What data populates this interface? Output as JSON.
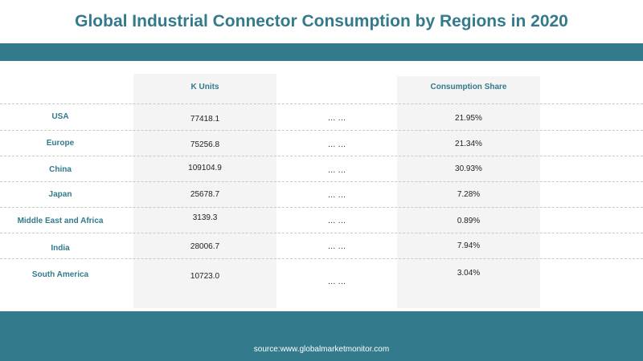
{
  "title": "Global Industrial Connector Consumption by Regions in 2020",
  "headers": {
    "k_units": "K Units",
    "share": "Consumption  Share"
  },
  "rows": [
    {
      "region": "USA",
      "k_units": "77418.1",
      "dots": "… …",
      "share": "21.95%"
    },
    {
      "region": "Europe",
      "k_units": "75256.8",
      "dots": "… …",
      "share": "21.34%"
    },
    {
      "region": "China",
      "k_units": "109104.9",
      "dots": "… …",
      "share": "30.93%"
    },
    {
      "region": "Japan",
      "k_units": "25678.7",
      "dots": "… …",
      "share": "7.28%"
    },
    {
      "region": "Middle East and Africa",
      "k_units": "3139.3",
      "dots": "… …",
      "share": "0.89%"
    },
    {
      "region": "India",
      "k_units": "28006.7",
      "dots": "… …",
      "share": "7.94%"
    },
    {
      "region": "South America",
      "k_units": "10723.0",
      "dots": "… …",
      "share": "3.04%"
    }
  ],
  "source": "source:www.globalmarketmonitor.com",
  "colors": {
    "accent": "#327a8c",
    "column_bg": "#f4f4f4"
  }
}
